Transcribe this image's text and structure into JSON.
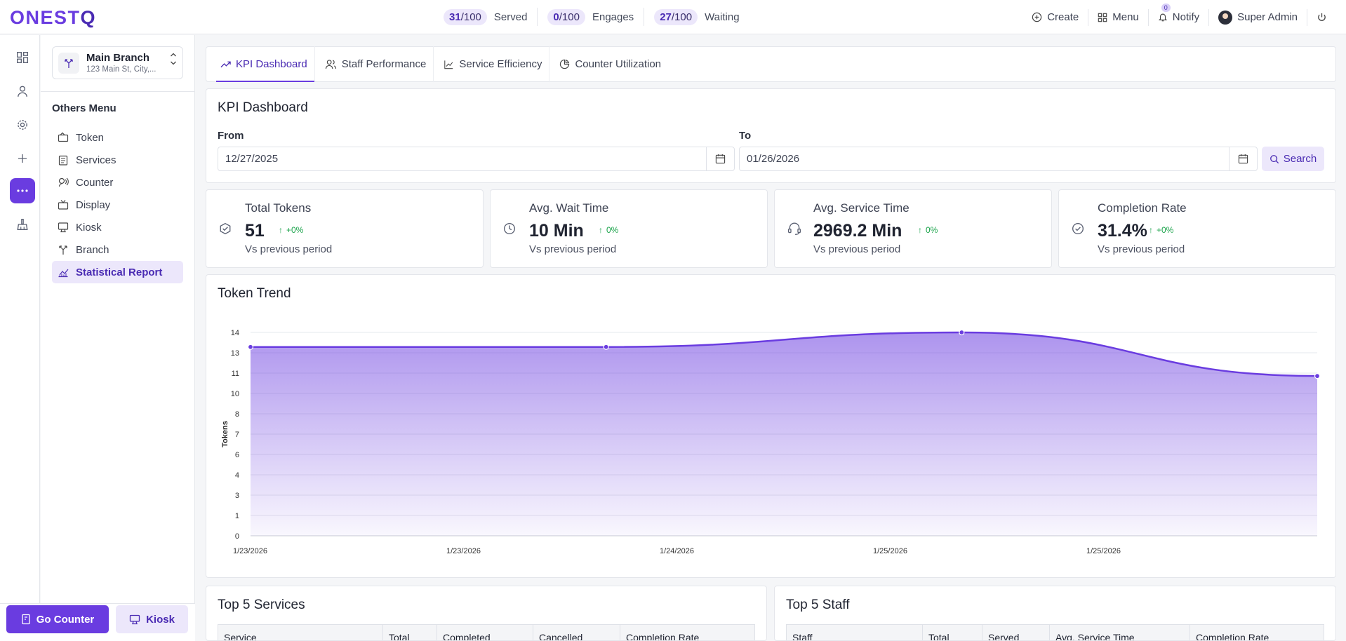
{
  "app": {
    "logo_main": "ONEST",
    "logo_q": "Q"
  },
  "counters": [
    {
      "value": "31",
      "total": "/100",
      "label": "Served"
    },
    {
      "value": "0",
      "total": "/100",
      "label": "Engages"
    },
    {
      "value": "27",
      "total": "/100",
      "label": "Waiting"
    }
  ],
  "toplinks": {
    "create": "Create",
    "menu": "Menu",
    "notify": "Notify",
    "notify_count": "0",
    "user": "Super Admin"
  },
  "branch": {
    "name": "Main Branch",
    "address": "123 Main St, City,..."
  },
  "sidebar": {
    "section_title": "Others Menu",
    "items": [
      {
        "label": "Token",
        "icon": "ticket-icon"
      },
      {
        "label": "Services",
        "icon": "clipboard-icon"
      },
      {
        "label": "Counter",
        "icon": "agent-icon"
      },
      {
        "label": "Display",
        "icon": "tv-icon"
      },
      {
        "label": "Kiosk",
        "icon": "kiosk-icon"
      },
      {
        "label": "Branch",
        "icon": "branch-icon"
      },
      {
        "label": "Statistical Report",
        "icon": "chart-icon",
        "active": true
      }
    ]
  },
  "bottom": {
    "go_counter": "Go Counter",
    "kiosk": "Kiosk"
  },
  "tabs": [
    {
      "label": "KPI Dashboard",
      "active": true
    },
    {
      "label": "Staff Performance"
    },
    {
      "label": "Service Efficiency"
    },
    {
      "label": "Counter Utilization"
    }
  ],
  "filter": {
    "title": "KPI Dashboard",
    "from_label": "From",
    "from_value": "12/27/2025",
    "to_label": "To",
    "to_value": "01/26/2026",
    "search_label": "Search"
  },
  "kpis": [
    {
      "title": "Total Tokens",
      "value": "51",
      "change": "+0%",
      "sub": "Vs previous period",
      "icon": "cube-icon"
    },
    {
      "title": "Avg. Wait Time",
      "value": "10 Min",
      "change": "0%",
      "sub": "Vs previous period",
      "icon": "clock-icon"
    },
    {
      "title": "Avg. Service Time",
      "value": "2969.2 Min",
      "change": "0%",
      "sub": "Vs previous period",
      "icon": "headset-icon"
    },
    {
      "title": "Completion Rate",
      "value": "31.4%",
      "change": "+0%",
      "sub": "Vs previous period",
      "icon": "check-circle-icon"
    }
  ],
  "chart_title": "Token Trend",
  "chart_data": {
    "type": "area",
    "ylabel": "Tokens",
    "y_ticks": [
      "0",
      "1",
      "3",
      "4",
      "6",
      "7",
      "8",
      "10",
      "11",
      "13",
      "14"
    ],
    "ylim": [
      0,
      14
    ],
    "x_tick_labels": [
      "1/23/2026",
      "1/23/2026",
      "1/24/2026",
      "1/25/2026",
      "1/25/2026"
    ],
    "points": [
      {
        "x": 0,
        "y": 13
      },
      {
        "x": 1,
        "y": 13
      },
      {
        "x": 2,
        "y": 14
      },
      {
        "x": 3,
        "y": 11
      }
    ],
    "grid": true,
    "color": "#6a3ce0"
  },
  "top_services": {
    "title": "Top 5 Services",
    "columns": [
      "Service",
      "Total",
      "Completed",
      "Cancelled",
      "Completion Rate"
    ]
  },
  "top_staff": {
    "title": "Top 5 Staff",
    "columns": [
      "Staff",
      "Total",
      "Served",
      "Avg. Service Time",
      "Completion Rate"
    ]
  }
}
